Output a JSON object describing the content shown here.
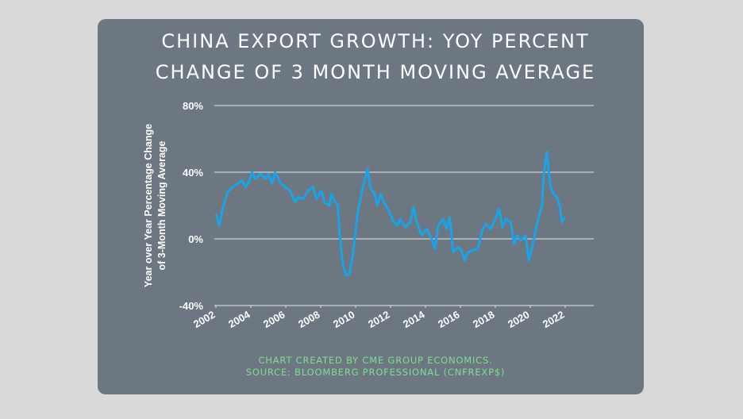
{
  "chart_data": {
    "type": "line",
    "title": [
      "CHINA EXPORT GROWTH: YOY PERCENT",
      "CHANGE OF 3 MONTH MOVING AVERAGE"
    ],
    "y_label": [
      "Year over Year Percentage Change",
      "of 3-Month Moving Average"
    ],
    "source": [
      "CHART CREATED BY CME GROUP ECONOMICS.",
      "SOURCE:  BLOOMBERG PROFESSIONAL (CNFREXP$)"
    ],
    "x": [
      2002.0,
      2002.19,
      2002.38,
      2002.66,
      2002.94,
      2003.23,
      2003.51,
      2003.7,
      2003.89,
      2004.07,
      2004.26,
      2004.55,
      2004.83,
      2005.02,
      2005.21,
      2005.39,
      2005.68,
      2005.96,
      2006.24,
      2006.53,
      2006.72,
      2007.0,
      2007.28,
      2007.56,
      2007.75,
      2008.04,
      2008.22,
      2008.51,
      2008.6,
      2008.79,
      2008.98,
      2009.07,
      2009.26,
      2009.45,
      2009.64,
      2009.83,
      2010.11,
      2010.39,
      2010.68,
      2010.86,
      2011.05,
      2011.24,
      2011.43,
      2011.62,
      2011.9,
      2012.18,
      2012.37,
      2012.56,
      2012.84,
      2013.13,
      2013.32,
      2013.5,
      2013.79,
      2014.07,
      2014.35,
      2014.54,
      2014.73,
      2015.01,
      2015.2,
      2015.39,
      2015.58,
      2015.86,
      2016.05,
      2016.24,
      2016.43,
      2016.71,
      2016.99,
      2017.28,
      2017.47,
      2017.75,
      2018.03,
      2018.22,
      2018.41,
      2018.6,
      2018.88,
      2019.07,
      2019.26,
      2019.45,
      2019.73,
      2019.92,
      2020.11,
      2020.39,
      2020.67,
      2020.77,
      2020.95,
      2021.14,
      2021.33,
      2021.52,
      2021.71,
      2021.8,
      2021.99
    ],
    "series": [
      {
        "name": "China export growth",
        "color": "#1aa3e8",
        "values": [
          15,
          8,
          18,
          28,
          31,
          33,
          35,
          31,
          34,
          40,
          36,
          39,
          36,
          39,
          33,
          40,
          34,
          31,
          29,
          22,
          25,
          24,
          29,
          31,
          24,
          29,
          22,
          20,
          27,
          23,
          20,
          5,
          -15,
          -22,
          -21,
          -10,
          15,
          30,
          42,
          30,
          28,
          20,
          27,
          22,
          17,
          10,
          8,
          12,
          7,
          10,
          19,
          10,
          2,
          6,
          0,
          -6,
          8,
          12,
          6,
          13,
          -8,
          -5,
          -7,
          -13,
          -8,
          -7,
          -6,
          6,
          9,
          6,
          13,
          18,
          7,
          12,
          10,
          -3,
          2,
          -1,
          2,
          -13,
          -5,
          9,
          20,
          38,
          52,
          32,
          27,
          25,
          19,
          10,
          13
        ]
      }
    ],
    "xlim": [
      2002,
      2023.5
    ],
    "xticks": [
      2002,
      2004,
      2006,
      2008,
      2010,
      2012,
      2014,
      2016,
      2018,
      2020,
      2022
    ],
    "ylim": [
      -40,
      80
    ],
    "yticks": [
      {
        "value": -40,
        "label": "-40%"
      },
      {
        "value": 0,
        "label": "0%"
      },
      {
        "value": 40,
        "label": "40%"
      },
      {
        "value": 80,
        "label": "80%"
      }
    ],
    "grid": true
  }
}
